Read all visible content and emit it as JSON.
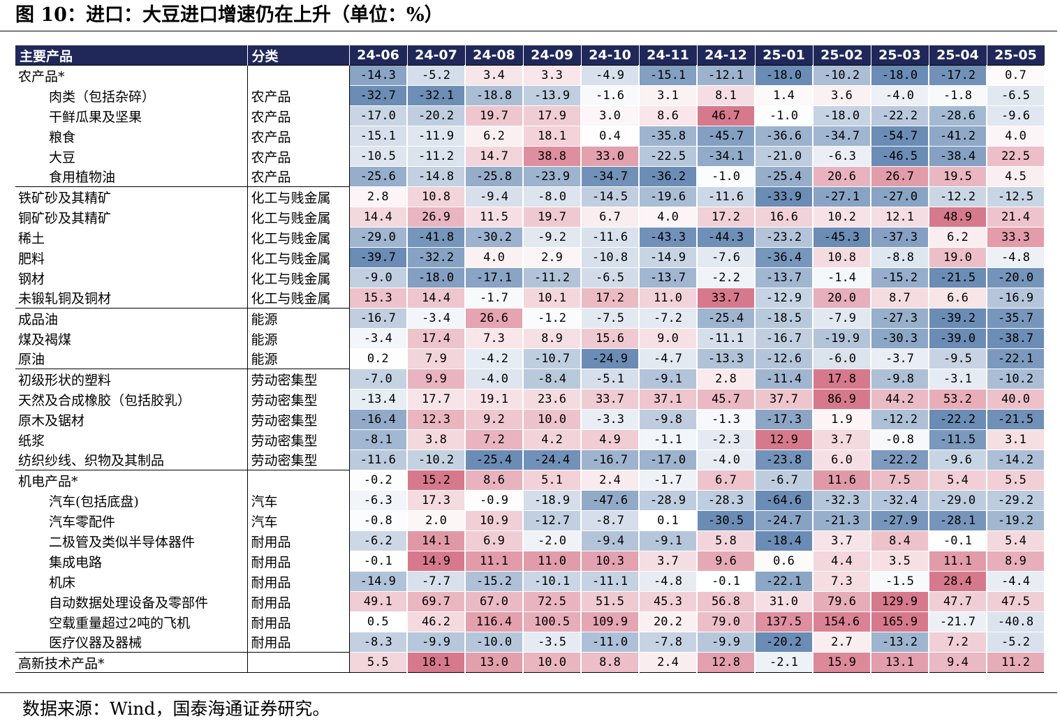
{
  "figure": {
    "title": "图 10：进口：大豆进口增速仍在上升（单位：%）",
    "source": "数据来源：Wind，国泰海通证券研究。"
  },
  "colors": {
    "header_bg": "#20285a",
    "negative_strong": "#6b8cb5",
    "neutral": "#ffffff",
    "positive_strong": "#d7798c"
  },
  "chart_data": {
    "type": "table",
    "columns": [
      "主要产品",
      "分类"
    ],
    "months": [
      "24-06",
      "24-07",
      "24-08",
      "24-09",
      "24-10",
      "24-11",
      "24-12",
      "25-01",
      "25-02",
      "25-03",
      "25-04",
      "25-05"
    ],
    "rows": [
      {
        "name": "农产品*",
        "category": "",
        "indent": false,
        "group_start": true,
        "values": [
          -14.3,
          -5.2,
          3.4,
          3.3,
          -4.9,
          -15.1,
          -12.1,
          -18.0,
          -10.2,
          -18.0,
          -17.2,
          0.7
        ]
      },
      {
        "name": "肉类（包括杂碎）",
        "category": "农产品",
        "indent": true,
        "group_start": false,
        "values": [
          -32.7,
          -32.1,
          -18.8,
          -13.9,
          -1.6,
          3.1,
          8.1,
          1.4,
          3.6,
          -4.0,
          -1.8,
          -6.5
        ]
      },
      {
        "name": "干鲜瓜果及坚果",
        "category": "农产品",
        "indent": true,
        "group_start": false,
        "values": [
          -17.0,
          -20.2,
          19.7,
          17.9,
          3.0,
          8.6,
          46.7,
          -1.0,
          -18.0,
          -22.2,
          -28.6,
          -9.6
        ]
      },
      {
        "name": "粮食",
        "category": "农产品",
        "indent": true,
        "group_start": false,
        "values": [
          -15.1,
          -11.9,
          6.2,
          18.1,
          0.4,
          -35.8,
          -45.7,
          -36.6,
          -34.7,
          -54.7,
          -41.2,
          4.0
        ]
      },
      {
        "name": "大豆",
        "category": "农产品",
        "indent": true,
        "group_start": false,
        "values": [
          -10.5,
          -11.2,
          14.7,
          38.8,
          33.0,
          -22.5,
          -34.1,
          -21.0,
          -6.3,
          -46.5,
          -38.4,
          22.5
        ]
      },
      {
        "name": "食用植物油",
        "category": "农产品",
        "indent": true,
        "group_start": false,
        "values": [
          -25.6,
          -14.8,
          -25.8,
          -23.9,
          -34.7,
          -36.2,
          -1.0,
          -25.4,
          20.6,
          26.7,
          19.5,
          4.5
        ]
      },
      {
        "name": "铁矿砂及其精矿",
        "category": "化工与贱金属",
        "indent": false,
        "group_start": true,
        "values": [
          2.8,
          10.8,
          -9.4,
          -8.0,
          -14.5,
          -19.6,
          -11.6,
          -33.9,
          -27.1,
          -27.0,
          -12.2,
          -12.5
        ]
      },
      {
        "name": "铜矿砂及其精矿",
        "category": "化工与贱金属",
        "indent": false,
        "group_start": false,
        "values": [
          14.4,
          26.9,
          11.5,
          19.7,
          6.7,
          4.0,
          17.2,
          16.6,
          10.2,
          12.1,
          48.9,
          21.4
        ]
      },
      {
        "name": "稀土",
        "category": "化工与贱金属",
        "indent": false,
        "group_start": false,
        "values": [
          -29.0,
          -41.8,
          -30.2,
          -9.2,
          -11.6,
          -43.3,
          -44.3,
          -23.2,
          -45.3,
          -37.3,
          6.2,
          33.3
        ]
      },
      {
        "name": "肥料",
        "category": "化工与贱金属",
        "indent": false,
        "group_start": false,
        "values": [
          -39.7,
          -32.2,
          4.0,
          2.9,
          -10.8,
          -14.9,
          -7.6,
          -36.4,
          10.8,
          -8.8,
          19.0,
          -4.8
        ]
      },
      {
        "name": "钢材",
        "category": "化工与贱金属",
        "indent": false,
        "group_start": false,
        "values": [
          -9.0,
          -18.0,
          -17.1,
          -11.2,
          -6.5,
          -13.7,
          -2.2,
          -13.7,
          -1.4,
          -15.2,
          -21.5,
          -20.0
        ]
      },
      {
        "name": "未锻轧铜及铜材",
        "category": "化工与贱金属",
        "indent": false,
        "group_start": false,
        "values": [
          15.3,
          14.4,
          -1.7,
          10.1,
          17.2,
          11.0,
          33.7,
          -12.9,
          20.0,
          8.7,
          6.6,
          -16.9
        ]
      },
      {
        "name": "成品油",
        "category": "能源",
        "indent": false,
        "group_start": true,
        "values": [
          -16.7,
          -3.4,
          26.6,
          -1.2,
          -7.5,
          -7.2,
          -25.4,
          -18.5,
          -7.9,
          -27.3,
          -39.2,
          -35.7
        ]
      },
      {
        "name": "煤及褐煤",
        "category": "能源",
        "indent": false,
        "group_start": false,
        "values": [
          -3.4,
          17.4,
          7.3,
          8.9,
          15.6,
          9.0,
          -11.1,
          -16.7,
          -19.9,
          -30.3,
          -39.0,
          -38.7
        ]
      },
      {
        "name": "原油",
        "category": "能源",
        "indent": false,
        "group_start": false,
        "values": [
          0.2,
          7.9,
          -4.2,
          -10.7,
          -24.9,
          -4.7,
          -13.3,
          -12.6,
          -6.0,
          -3.7,
          -9.5,
          -22.1
        ]
      },
      {
        "name": "初级形状的塑料",
        "category": "劳动密集型",
        "indent": false,
        "group_start": true,
        "values": [
          -7.0,
          9.9,
          -4.0,
          -8.4,
          -5.1,
          -9.1,
          2.8,
          -11.4,
          17.8,
          -9.8,
          -3.1,
          -10.2
        ]
      },
      {
        "name": "天然及合成橡胶（包括胶乳）",
        "category": "劳动密集型",
        "indent": false,
        "group_start": false,
        "values": [
          -13.4,
          17.7,
          19.1,
          23.6,
          33.7,
          37.1,
          45.7,
          37.7,
          86.9,
          44.2,
          53.2,
          40.0
        ]
      },
      {
        "name": "原木及锯材",
        "category": "劳动密集型",
        "indent": false,
        "group_start": false,
        "values": [
          -16.4,
          12.3,
          9.2,
          10.0,
          -3.3,
          -9.8,
          -1.3,
          -17.3,
          1.9,
          -12.2,
          -22.2,
          -21.5
        ]
      },
      {
        "name": "纸浆",
        "category": "劳动密集型",
        "indent": false,
        "group_start": false,
        "values": [
          -8.1,
          3.8,
          7.2,
          4.2,
          4.9,
          -1.1,
          -2.3,
          12.9,
          3.7,
          -0.8,
          -11.5,
          3.1
        ]
      },
      {
        "name": "纺织纱线、织物及其制品",
        "category": "劳动密集型",
        "indent": false,
        "group_start": false,
        "values": [
          -11.6,
          -10.2,
          -25.4,
          -24.4,
          -16.7,
          -17.0,
          -4.0,
          -23.8,
          6.0,
          -22.2,
          -9.6,
          -14.2
        ]
      },
      {
        "name": "机电产品*",
        "category": "",
        "indent": false,
        "group_start": true,
        "values": [
          -0.2,
          15.2,
          8.6,
          5.1,
          2.4,
          -1.7,
          6.7,
          -6.7,
          11.6,
          7.5,
          5.4,
          5.5
        ]
      },
      {
        "name": "汽车(包括底盘)",
        "category": "汽车",
        "indent": true,
        "group_start": false,
        "values": [
          -6.3,
          17.3,
          -0.9,
          -18.9,
          -47.6,
          -28.9,
          -28.3,
          -64.6,
          -32.3,
          -32.4,
          -29.0,
          -29.2
        ]
      },
      {
        "name": "汽车零配件",
        "category": "汽车",
        "indent": true,
        "group_start": false,
        "values": [
          -0.8,
          2.0,
          10.9,
          -12.7,
          -8.7,
          0.1,
          -30.5,
          -24.7,
          -21.3,
          -27.9,
          -28.1,
          -19.2
        ]
      },
      {
        "name": "二极管及类似半导体器件",
        "category": "耐用品",
        "indent": true,
        "group_start": false,
        "values": [
          -6.2,
          14.1,
          6.9,
          -2.0,
          -9.4,
          -9.1,
          5.8,
          -18.4,
          3.7,
          8.4,
          -0.1,
          5.4
        ]
      },
      {
        "name": "集成电路",
        "category": "耐用品",
        "indent": true,
        "group_start": false,
        "values": [
          -0.1,
          14.9,
          11.1,
          11.0,
          10.3,
          3.7,
          9.6,
          0.6,
          4.4,
          3.5,
          11.1,
          8.9
        ]
      },
      {
        "name": "机床",
        "category": "耐用品",
        "indent": true,
        "group_start": false,
        "values": [
          -14.9,
          -7.7,
          -15.2,
          -10.1,
          -11.1,
          -4.8,
          -0.1,
          -22.1,
          7.3,
          -1.5,
          28.4,
          -4.4
        ]
      },
      {
        "name": "自动数据处理设备及零部件",
        "category": "耐用品",
        "indent": true,
        "group_start": false,
        "values": [
          49.1,
          69.7,
          67.0,
          72.5,
          51.5,
          45.3,
          56.8,
          31.0,
          79.6,
          129.9,
          47.7,
          47.5
        ]
      },
      {
        "name": "空载重量超过2吨的飞机",
        "category": "耐用品",
        "indent": true,
        "group_start": false,
        "values": [
          0.5,
          46.2,
          116.4,
          100.5,
          109.9,
          20.2,
          79.0,
          137.5,
          154.6,
          165.9,
          -21.7,
          -40.8
        ]
      },
      {
        "name": "医疗仪器及器械",
        "category": "耐用品",
        "indent": true,
        "group_start": false,
        "values": [
          -8.3,
          -9.9,
          -10.0,
          -3.5,
          -11.0,
          -7.8,
          -9.9,
          -20.2,
          2.7,
          -13.2,
          7.2,
          -5.2
        ]
      },
      {
        "name": "高新技术产品*",
        "category": "",
        "indent": false,
        "group_start": true,
        "values": [
          5.5,
          18.1,
          13.0,
          10.0,
          8.8,
          2.4,
          12.8,
          -2.1,
          15.9,
          13.1,
          9.4,
          11.2
        ]
      }
    ]
  }
}
